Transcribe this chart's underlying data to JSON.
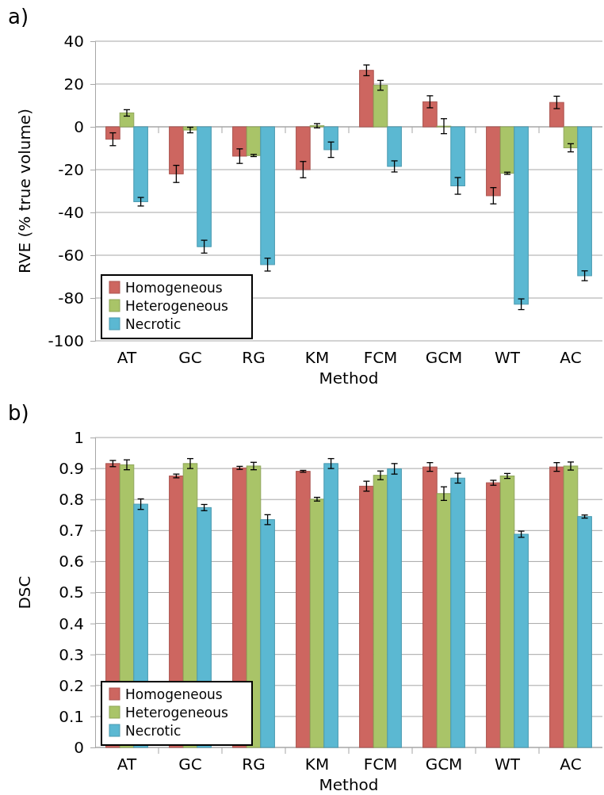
{
  "chart_data": [
    {
      "type": "bar",
      "title": "a)",
      "xlabel": "Method",
      "ylabel": "RVE (% true volume)",
      "categories": [
        "AT",
        "GC",
        "RG",
        "KM",
        "FCM",
        "GCM",
        "WT",
        "AC"
      ],
      "ylim": [
        -100,
        40
      ],
      "yticks": [
        -100,
        -80,
        -60,
        -40,
        -20,
        0,
        20,
        40
      ],
      "grid": "y",
      "legend": "bottom left",
      "series": [
        {
          "name": "Homogeneous",
          "color": "#cd6660",
          "values": [
            -5.8,
            -22,
            -13.7,
            -20,
            26.4,
            11.7,
            -32.2,
            11.4
          ],
          "errors": [
            3,
            4,
            3.4,
            3.8,
            2.5,
            2.8,
            3.8,
            2.9
          ]
        },
        {
          "name": "Heterogeneous",
          "color": "#a9c468",
          "values": [
            6.5,
            -1.5,
            -13.4,
            0.5,
            19.4,
            0.3,
            -21.7,
            -9.8
          ],
          "errors": [
            1.5,
            1.3,
            0.5,
            1,
            2.3,
            3.5,
            0.5,
            1.9
          ]
        },
        {
          "name": "Necrotic",
          "color": "#5bb8d2",
          "values": [
            -35,
            -56,
            -64.4,
            -10.7,
            -18.5,
            -27.6,
            -82.9,
            -69.6
          ],
          "errors": [
            2,
            3,
            3,
            3.6,
            2.6,
            3.9,
            2.5,
            2.3
          ]
        }
      ]
    },
    {
      "type": "bar",
      "title": "b)",
      "xlabel": "Method",
      "ylabel": "DSC",
      "categories": [
        "AT",
        "GC",
        "RG",
        "KM",
        "FCM",
        "GCM",
        "WT",
        "AC"
      ],
      "ylim": [
        0,
        1
      ],
      "yticks": [
        0,
        0.1,
        0.2,
        0.3,
        0.4,
        0.5,
        0.6,
        0.7,
        0.8,
        0.9,
        1
      ],
      "grid": "y",
      "legend": "bottom left",
      "series": [
        {
          "name": "Homogeneous",
          "color": "#cd6660",
          "values": [
            0.916,
            0.876,
            0.902,
            0.891,
            0.843,
            0.905,
            0.854,
            0.905
          ],
          "errors": [
            0.01,
            0.006,
            0.005,
            0.003,
            0.016,
            0.014,
            0.008,
            0.014
          ]
        },
        {
          "name": "Heterogeneous",
          "color": "#a9c468",
          "values": [
            0.912,
            0.916,
            0.908,
            0.801,
            0.878,
            0.819,
            0.876,
            0.908
          ],
          "errors": [
            0.016,
            0.016,
            0.012,
            0.006,
            0.014,
            0.022,
            0.008,
            0.013
          ]
        },
        {
          "name": "Necrotic",
          "color": "#5bb8d2",
          "values": [
            0.785,
            0.774,
            0.735,
            0.916,
            0.899,
            0.869,
            0.688,
            0.745
          ],
          "errors": [
            0.017,
            0.01,
            0.016,
            0.016,
            0.017,
            0.016,
            0.01,
            0.005
          ]
        }
      ]
    }
  ]
}
